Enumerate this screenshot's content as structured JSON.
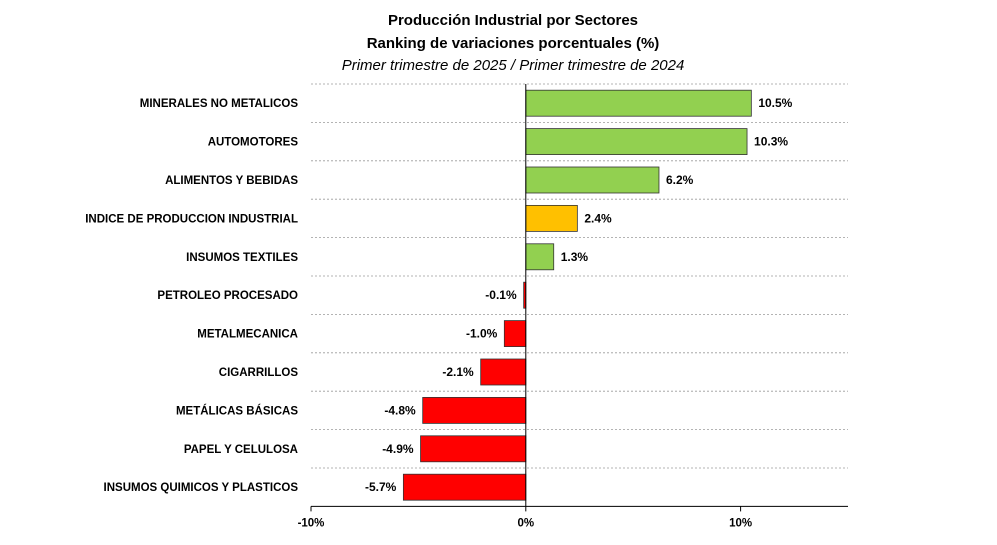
{
  "chart_data": {
    "type": "bar",
    "orientation": "horizontal",
    "title": "Producción Industrial por Sectores",
    "title_line2": "Ranking de variaciones porcentuales (%)",
    "subtitle": "Primer trimestre de 2025 / Primer trimestre de 2024",
    "categories": [
      "MINERALES NO METALICOS",
      "AUTOMOTORES",
      "ALIMENTOS Y BEBIDAS",
      "INDICE DE PRODUCCION INDUSTRIAL",
      "INSUMOS TEXTILES",
      "PETROLEO PROCESADO",
      "METALMECANICA",
      "CIGARRILLOS",
      "METÁLICAS BÁSICAS",
      "PAPEL Y CELULOSA",
      "INSUMOS QUIMICOS Y PLASTICOS"
    ],
    "values": [
      10.5,
      10.3,
      6.2,
      2.4,
      1.3,
      -0.1,
      -1.0,
      -2.1,
      -4.8,
      -4.9,
      -5.7
    ],
    "value_labels": [
      "10.5%",
      "10.3%",
      "6.2%",
      "2.4%",
      "1.3%",
      "-0.1%",
      "-1.0%",
      "-2.1%",
      "-4.8%",
      "-4.9%",
      "-5.7%"
    ],
    "xlim": [
      -10,
      15
    ],
    "xticks": [
      -10,
      0,
      10
    ],
    "xtick_labels": [
      "-10%",
      "0%",
      "10%"
    ],
    "gridlines": "horizontal dashed",
    "colors": {
      "positive": "#92D050",
      "highlight": "#FFC000",
      "negative": "#FF0000",
      "border": "#333333"
    },
    "highlight_category": "INDICE DE PRODUCCION INDUSTRIAL"
  }
}
